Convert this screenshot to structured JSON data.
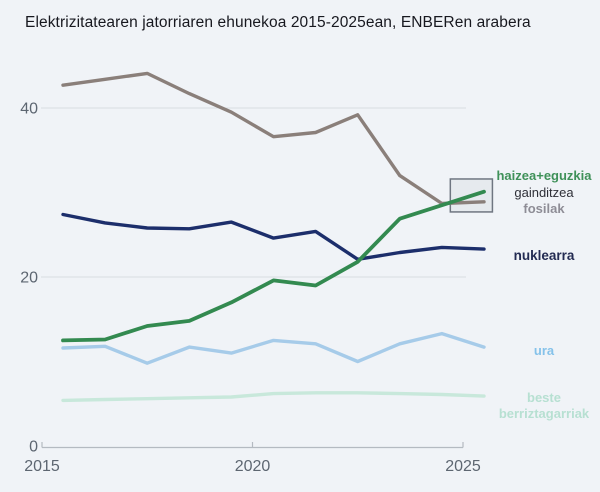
{
  "title": "Elektrizitatearen jatorriaren ehunekoa 2015-2025ean, ENBERen arabera",
  "colors": {
    "background": "#f0f3f7",
    "grid": "#d8dce1",
    "axis": "#b4bac1",
    "tick_text": "#5d6671",
    "title_text": "#17181f",
    "annotation_box_border": "#6f7681",
    "annotation_box_fill": "rgba(120,130,145,0.08)"
  },
  "legend": {
    "haizea": {
      "label": "haizea+eguzkia",
      "color": "#3f9159"
    },
    "gainditzea": {
      "label": "gainditzea",
      "color": "#2f3038"
    },
    "fosilak": {
      "label": "fosilak",
      "color": "#8e8d96"
    },
    "nuklearra": {
      "label": "nuklearra",
      "color": "#232b52"
    },
    "ura": {
      "label": "ura",
      "color": "#85c2ea"
    },
    "beste": {
      "label": "beste berriztagarriak",
      "color": "#b7e0d2"
    }
  },
  "chart_data": {
    "type": "line",
    "title": "Elektrizitatearen jatorriaren ehunekoa 2015-2025ean, ENBERen arabera",
    "x": [
      2015,
      2016,
      2017,
      2018,
      2019,
      2020,
      2021,
      2022,
      2023,
      2024,
      2025
    ],
    "x_ticks": [
      2015,
      2020,
      2025
    ],
    "y_ticks": [
      0,
      20,
      40
    ],
    "ylim": [
      0,
      46
    ],
    "xlabel": "",
    "ylabel": "",
    "grid": "horizontal",
    "legend_position": "right",
    "series": [
      {
        "name": "fosilak",
        "color": "#8a7f7a",
        "values": [
          42.7,
          43.4,
          44.1,
          41.7,
          39.5,
          36.6,
          37.1,
          39.2,
          32.0,
          28.7,
          28.9
        ]
      },
      {
        "name": "nuklearra",
        "color": "#1c2e6b",
        "values": [
          27.4,
          26.4,
          25.8,
          25.7,
          26.5,
          24.6,
          25.4,
          22.1,
          22.9,
          23.5,
          23.3
        ]
      },
      {
        "name": "beste berriztagarriak",
        "color": "#c8e8db",
        "values": [
          5.4,
          5.5,
          5.6,
          5.7,
          5.8,
          6.2,
          6.3,
          6.3,
          6.2,
          6.1,
          5.9
        ]
      },
      {
        "name": "ura",
        "color": "#a6cbe9",
        "values": [
          11.6,
          11.8,
          9.8,
          11.7,
          11.0,
          12.5,
          12.1,
          10.0,
          12.1,
          13.3,
          11.7
        ]
      },
      {
        "name": "haizea+eguzkia",
        "color": "#338a50",
        "values": [
          12.5,
          12.6,
          14.2,
          14.8,
          17.0,
          19.6,
          19.0,
          21.8,
          26.9,
          28.5,
          30.1
        ]
      }
    ],
    "annotation": {
      "text": "haizea+eguzkia gainditzea fosilak",
      "box_x_range": [
        2024.2,
        2025.2
      ],
      "box_y_range": [
        27.7,
        31.6
      ]
    }
  }
}
